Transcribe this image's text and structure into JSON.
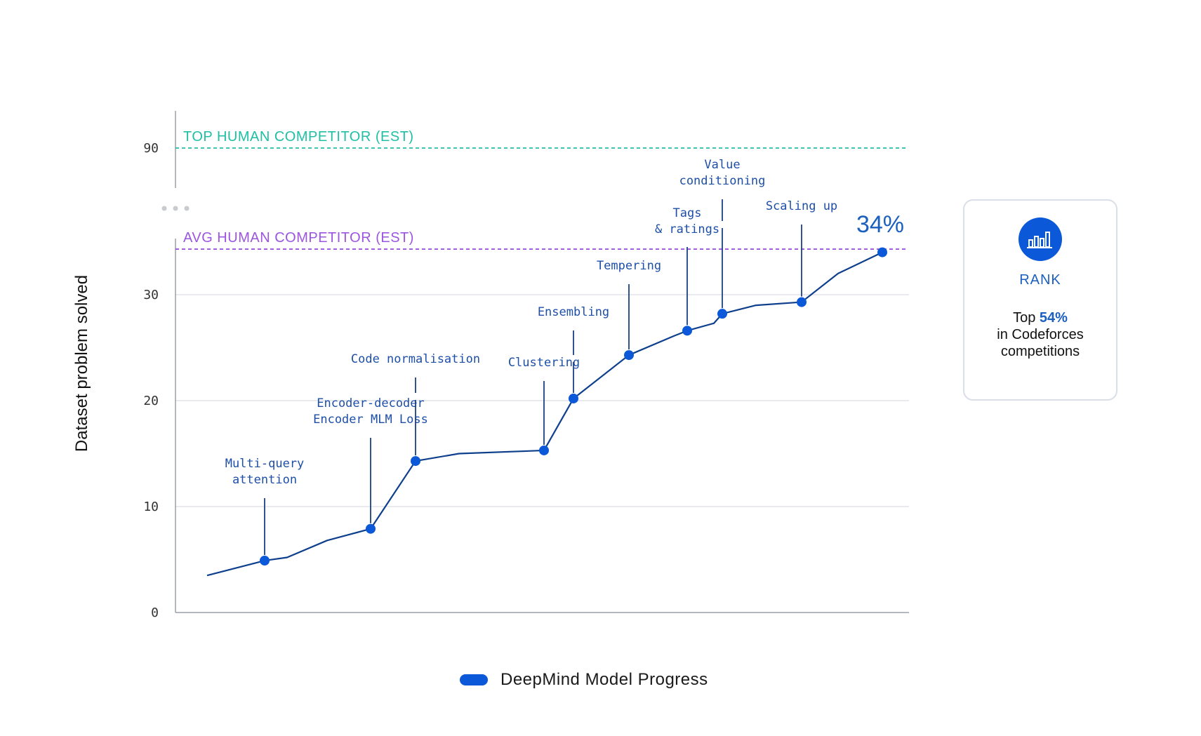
{
  "chart_data": {
    "type": "line",
    "ylabel": "Dataset problem solved",
    "yticks": [
      "0",
      "10",
      "20",
      "30",
      "90"
    ],
    "series": [
      {
        "name": "DeepMind Model Progress",
        "color": "#0b58d8",
        "points": [
          {
            "y": 3.5
          },
          {
            "y": 4.9,
            "marked": true
          },
          {
            "y": 5.2
          },
          {
            "y": 6.8
          },
          {
            "y": 7.9,
            "marked": true
          },
          {
            "y": 14.3,
            "marked": true
          },
          {
            "y": 15.0
          },
          {
            "y": 15.3,
            "marked": true
          },
          {
            "y": 20.2,
            "marked": true
          },
          {
            "y": 24.3,
            "marked": true
          },
          {
            "y": 26.1
          },
          {
            "y": 26.6,
            "marked": true
          },
          {
            "y": 27.3
          },
          {
            "y": 28.2,
            "marked": true
          },
          {
            "y": 29.0
          },
          {
            "y": 29.3,
            "marked": true
          },
          {
            "y": 32.0
          },
          {
            "y": 34.0,
            "marked": true
          }
        ]
      }
    ],
    "reference_lines": [
      {
        "label": "TOP HUMAN COMPETITOR (EST)",
        "y": 90,
        "color": "#1fbfa5"
      },
      {
        "label": "AVG HUMAN COMPETITOR (EST)",
        "y": 34.3,
        "color": "#9b55e0"
      }
    ],
    "annotations": [
      {
        "lines": [
          "Multi-query",
          "attention"
        ],
        "point": 1
      },
      {
        "lines": [
          "Encoder-decoder",
          "Encoder MLM Loss"
        ],
        "point": 4
      },
      {
        "lines": [
          "Code normalisation"
        ],
        "point": 5
      },
      {
        "lines": [
          "Clustering"
        ],
        "point": 7
      },
      {
        "lines": [
          "Ensembling"
        ],
        "point": 8
      },
      {
        "lines": [
          "Tempering"
        ],
        "point": 9
      },
      {
        "lines": [
          "Tags",
          "& ratings"
        ],
        "point": 11
      },
      {
        "lines": [
          "Value",
          "conditioning"
        ],
        "point": 13
      },
      {
        "lines": [
          "Scaling up"
        ],
        "point": 15
      }
    ],
    "end_label": "34%",
    "grid": true
  },
  "legend": {
    "label": "DeepMind Model Progress",
    "color": "#0b58d8"
  },
  "rank_card": {
    "icon": "bar-chart-icon",
    "label": "RANK",
    "line1_prefix": "Top ",
    "line1_value": "54%",
    "line2": "in Codeforces",
    "line3": "competitions"
  }
}
